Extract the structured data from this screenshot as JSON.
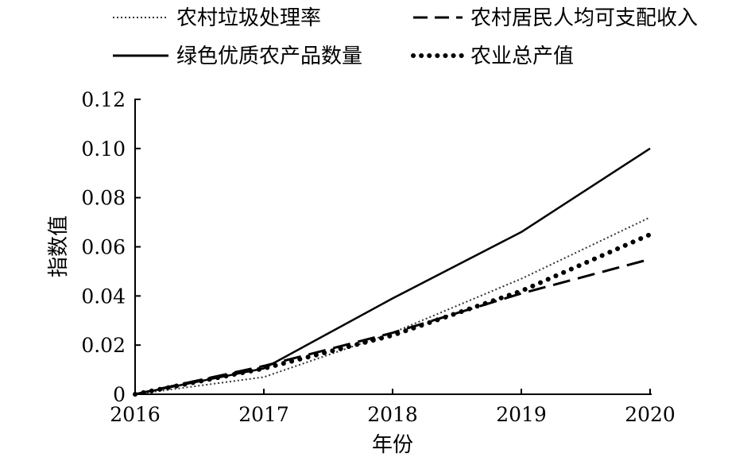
{
  "chart_data": {
    "type": "line",
    "xlabel": "年份",
    "ylabel": "指数值",
    "x": [
      2016,
      2017,
      2018,
      2019,
      2020
    ],
    "xlim": [
      2016,
      2020
    ],
    "ylim": [
      0,
      0.12
    ],
    "yticks": [
      "0",
      "0.02",
      "0.04",
      "0.06",
      "0.08",
      "0.10",
      "0.12"
    ],
    "xticks": [
      "2016",
      "2017",
      "2018",
      "2019",
      "2020"
    ],
    "grid": false,
    "legend_position": "top",
    "series": [
      {
        "name": "农村垃圾处理率",
        "style": "dotted-thin",
        "color": "#333333",
        "values": [
          0,
          0.007,
          0.025,
          0.047,
          0.072
        ]
      },
      {
        "name": "农村居民人均可支配收入",
        "style": "dashed",
        "color": "#000000",
        "values": [
          0,
          0.0115,
          0.025,
          0.041,
          0.055
        ]
      },
      {
        "name": "绿色优质农产品数量",
        "style": "solid",
        "color": "#000000",
        "values": [
          0,
          0.0105,
          0.039,
          0.066,
          0.1
        ]
      },
      {
        "name": "农业总产值",
        "style": "dotted-heavy",
        "color": "#000000",
        "values": [
          0,
          0.0105,
          0.024,
          0.042,
          0.065
        ]
      }
    ]
  }
}
